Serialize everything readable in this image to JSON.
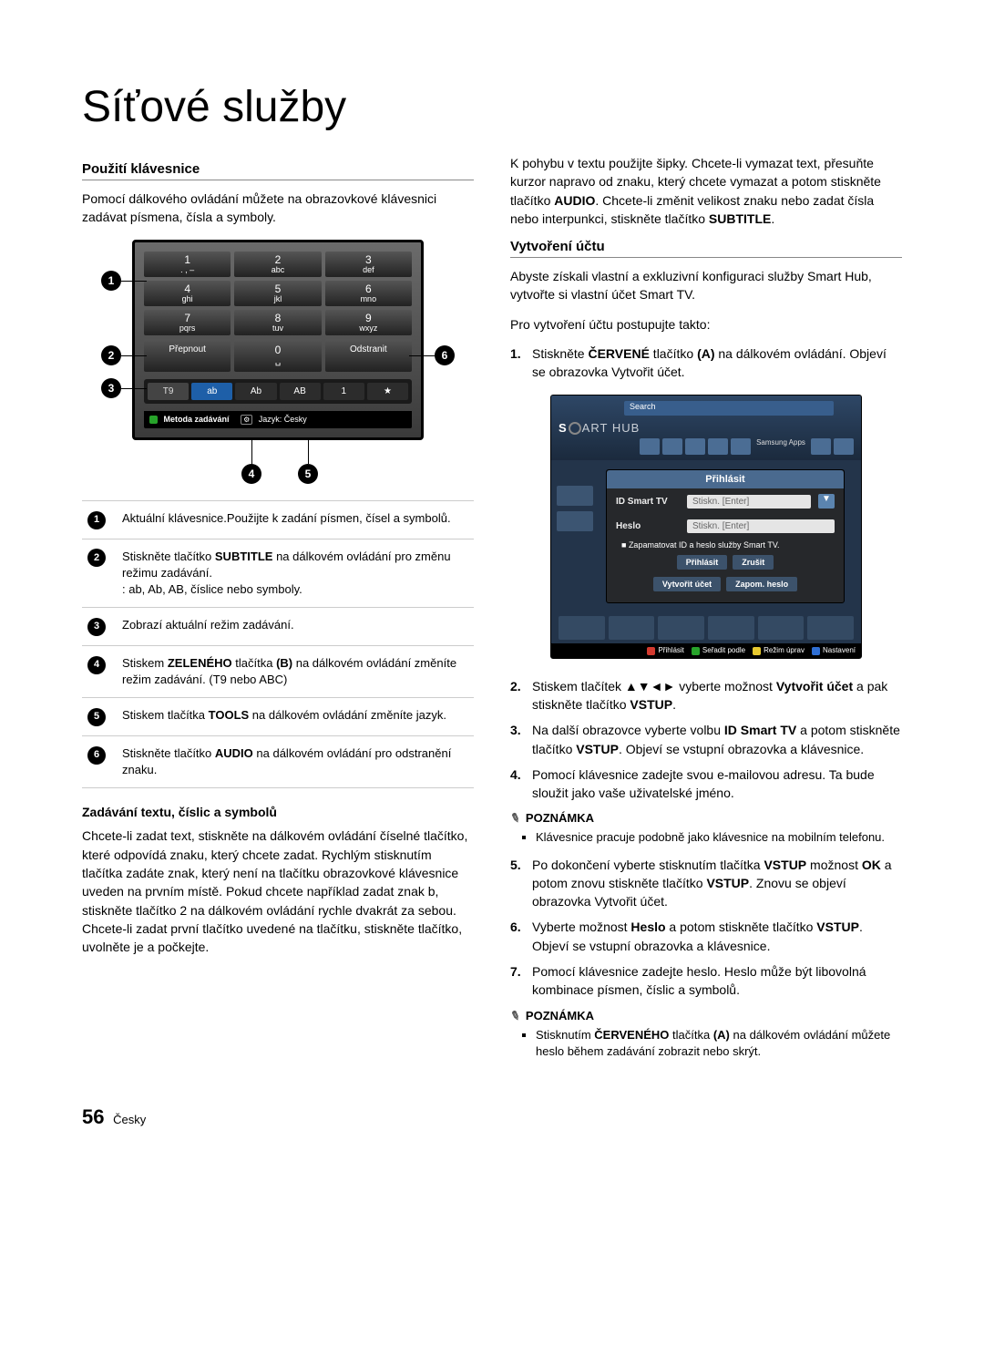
{
  "page": {
    "title": "Síťové služby",
    "number": "56",
    "lang": "Česky"
  },
  "left": {
    "section_head": "Použití klávesnice",
    "intro": "Pomocí dálkového ovládání můžete na obrazovkové klávesnici zadávat písmena, čísla a symboly.",
    "keyboard": {
      "keys": [
        {
          "n": "1",
          "s": ". , –"
        },
        {
          "n": "2",
          "s": "abc"
        },
        {
          "n": "3",
          "s": "def"
        },
        {
          "n": "4",
          "s": "ghi"
        },
        {
          "n": "5",
          "s": "jkl"
        },
        {
          "n": "6",
          "s": "mno"
        },
        {
          "n": "7",
          "s": "pqrs"
        },
        {
          "n": "8",
          "s": "tuv"
        },
        {
          "n": "9",
          "s": "wxyz"
        }
      ],
      "row2": {
        "left": "Přepnout",
        "mid_n": "0",
        "mid_s": "␣",
        "right": "Odstranit"
      },
      "mode_row": {
        "chip0": "T9",
        "chip1": "ab",
        "chip2": "Ab",
        "chip3": "AB",
        "chip4": "1",
        "chip5": "★"
      },
      "hint": {
        "method": "Metoda zadávání",
        "tools": "⚙",
        "lang_label": "Jazyk:",
        "lang_value": "Česky"
      }
    },
    "callouts": {
      "c1": "1",
      "c2": "2",
      "c3": "3",
      "c4": "4",
      "c5": "5",
      "c6": "6"
    },
    "legend": [
      {
        "n": "1",
        "text_a": "Aktuální klávesnice.",
        "text_b": "Použijte k zadání písmen, čísel a symbolů."
      },
      {
        "n": "2",
        "text_a": "Stiskněte tlačítko ",
        "bold1": "SUBTITLE",
        "text_b": " na dálkovém ovládání pro změnu režimu zadávání.",
        "text_c": ": ab, Ab, AB, číslice nebo symboly."
      },
      {
        "n": "3",
        "text_a": "Zobrazí aktuální režim zadávání."
      },
      {
        "n": "4",
        "text_a": "Stiskem ",
        "bold1": "ZELENÉHO",
        "text_b": " tlačítka ",
        "bold2": "(B)",
        "text_c": " na dálkovém ovládání změníte režim zadávání. (T9 nebo ABC)"
      },
      {
        "n": "5",
        "text_a": "Stiskem tlačítka ",
        "bold1": "TOOLS",
        "text_b": " na dálkovém ovládání změníte jazyk."
      },
      {
        "n": "6",
        "text_a": "Stiskněte tlačítko ",
        "bold1": "AUDIO",
        "text_b": " na dálkovém ovládání pro odstranění znaku."
      }
    ],
    "subhead": "Zadávání textu, číslic a symbolů",
    "para": "Chcete-li zadat text, stiskněte na dálkovém ovládání číselné tlačítko, které odpovídá znaku, který chcete zadat. Rychlým stisknutím tlačítka zadáte znak, který není na tlačítku obrazovkové klávesnice uveden na prvním místě. Pokud chcete například zadat znak b, stiskněte tlačítko 2 na dálkovém ovládání rychle dvakrát za sebou. Chcete-li zadat první tlačítko uvedené na tlačítku, stiskněte tlačítko, uvolněte je a počkejte."
  },
  "right": {
    "top_para_1": "K pohybu v textu použijte šipky. Chcete-li vymazat text, přesuňte kurzor napravo od znaku, který chcete vymazat a potom stiskněte tlačítko ",
    "top_bold_1": "AUDIO",
    "top_para_2": ". Chcete-li změnit velikost znaku nebo zadat čísla nebo interpunkci, stiskněte tlačítko ",
    "top_bold_2": "SUBTITLE",
    "top_para_3": ".",
    "section_head": "Vytvoření účtu",
    "intro1": "Abyste získali vlastní a exkluzivní konfiguraci služby Smart Hub, vytvořte si vlastní účet Smart TV.",
    "intro2": "Pro vytvoření účtu postupujte takto:",
    "step1_a": "Stiskněte ",
    "step1_b": "ČERVENÉ",
    "step1_c": " tlačítko ",
    "step1_d": "(A)",
    "step1_e": " na dálkovém ovládání. Objeví se obrazovka Vytvořit účet.",
    "hub": {
      "search": "Search",
      "brand_a": "S",
      "brand_b": "ART HUB",
      "samsung_apps": "Samsung Apps",
      "modal_title": "Přihlásit",
      "row1_label": "ID Smart TV",
      "row1_value": "Stiskn. [Enter]",
      "row2_label": "Heslo",
      "row2_value": "Stiskn. [Enter]",
      "checkbox": "Zapamatovat ID a heslo služby Smart TV.",
      "btn_login": "Přihlásit",
      "btn_cancel": "Zrušit",
      "btn_create": "Vytvořit účet",
      "btn_forgot": "Zapom. heslo",
      "foot_a": "Přihlásit",
      "foot_b": "Seřadit podle",
      "foot_c": "Režim úprav",
      "foot_d": "Nastavení",
      "color_a": "#d43a2f",
      "color_b": "#27a32a",
      "color_c": "#e7c92f",
      "color_d": "#2f6fd4"
    },
    "steps_after": [
      {
        "n": "2.",
        "html": "Stiskem tlačítek ▲▼◄► vyberte možnost <b>Vytvořit účet</b> a pak stiskněte tlačítko <b>VSTUP</b>."
      },
      {
        "n": "3.",
        "html": "Na další obrazovce vyberte volbu <b>ID Smart TV</b> a potom stiskněte tlačítko <b>VSTUP</b>. Objeví se vstupní obrazovka a klávesnice."
      },
      {
        "n": "4.",
        "html": "Pomocí klávesnice zadejte svou e-mailovou adresu. Ta bude sloužit jako vaše uživatelské jméno."
      }
    ],
    "note1_head": "POZNÁMKA",
    "note1_item": "Klávesnice pracuje podobně jako klávesnice na mobilním telefonu.",
    "steps_after2": [
      {
        "n": "5.",
        "html": "Po dokončení vyberte stisknutím tlačítka <b>VSTUP</b> možnost <b>OK</b> a potom znovu stiskněte tlačítko <b>VSTUP</b>. Znovu se objeví obrazovka Vytvořit účet."
      },
      {
        "n": "6.",
        "html": "Vyberte možnost <b>Heslo</b> a potom stiskněte tlačítko <b>VSTUP</b>. Objeví se vstupní obrazovka a klávesnice."
      },
      {
        "n": "7.",
        "html": "Pomocí klávesnice zadejte heslo. Heslo může být libovolná kombinace písmen, číslic a symbolů."
      }
    ],
    "note2_head": "POZNÁMKA",
    "note2_item": "Stisknutím <b>ČERVENÉHO</b> tlačítka <b>(A)</b> na dálkovém ovládání můžete heslo během zadávání zobrazit nebo skrýt."
  }
}
